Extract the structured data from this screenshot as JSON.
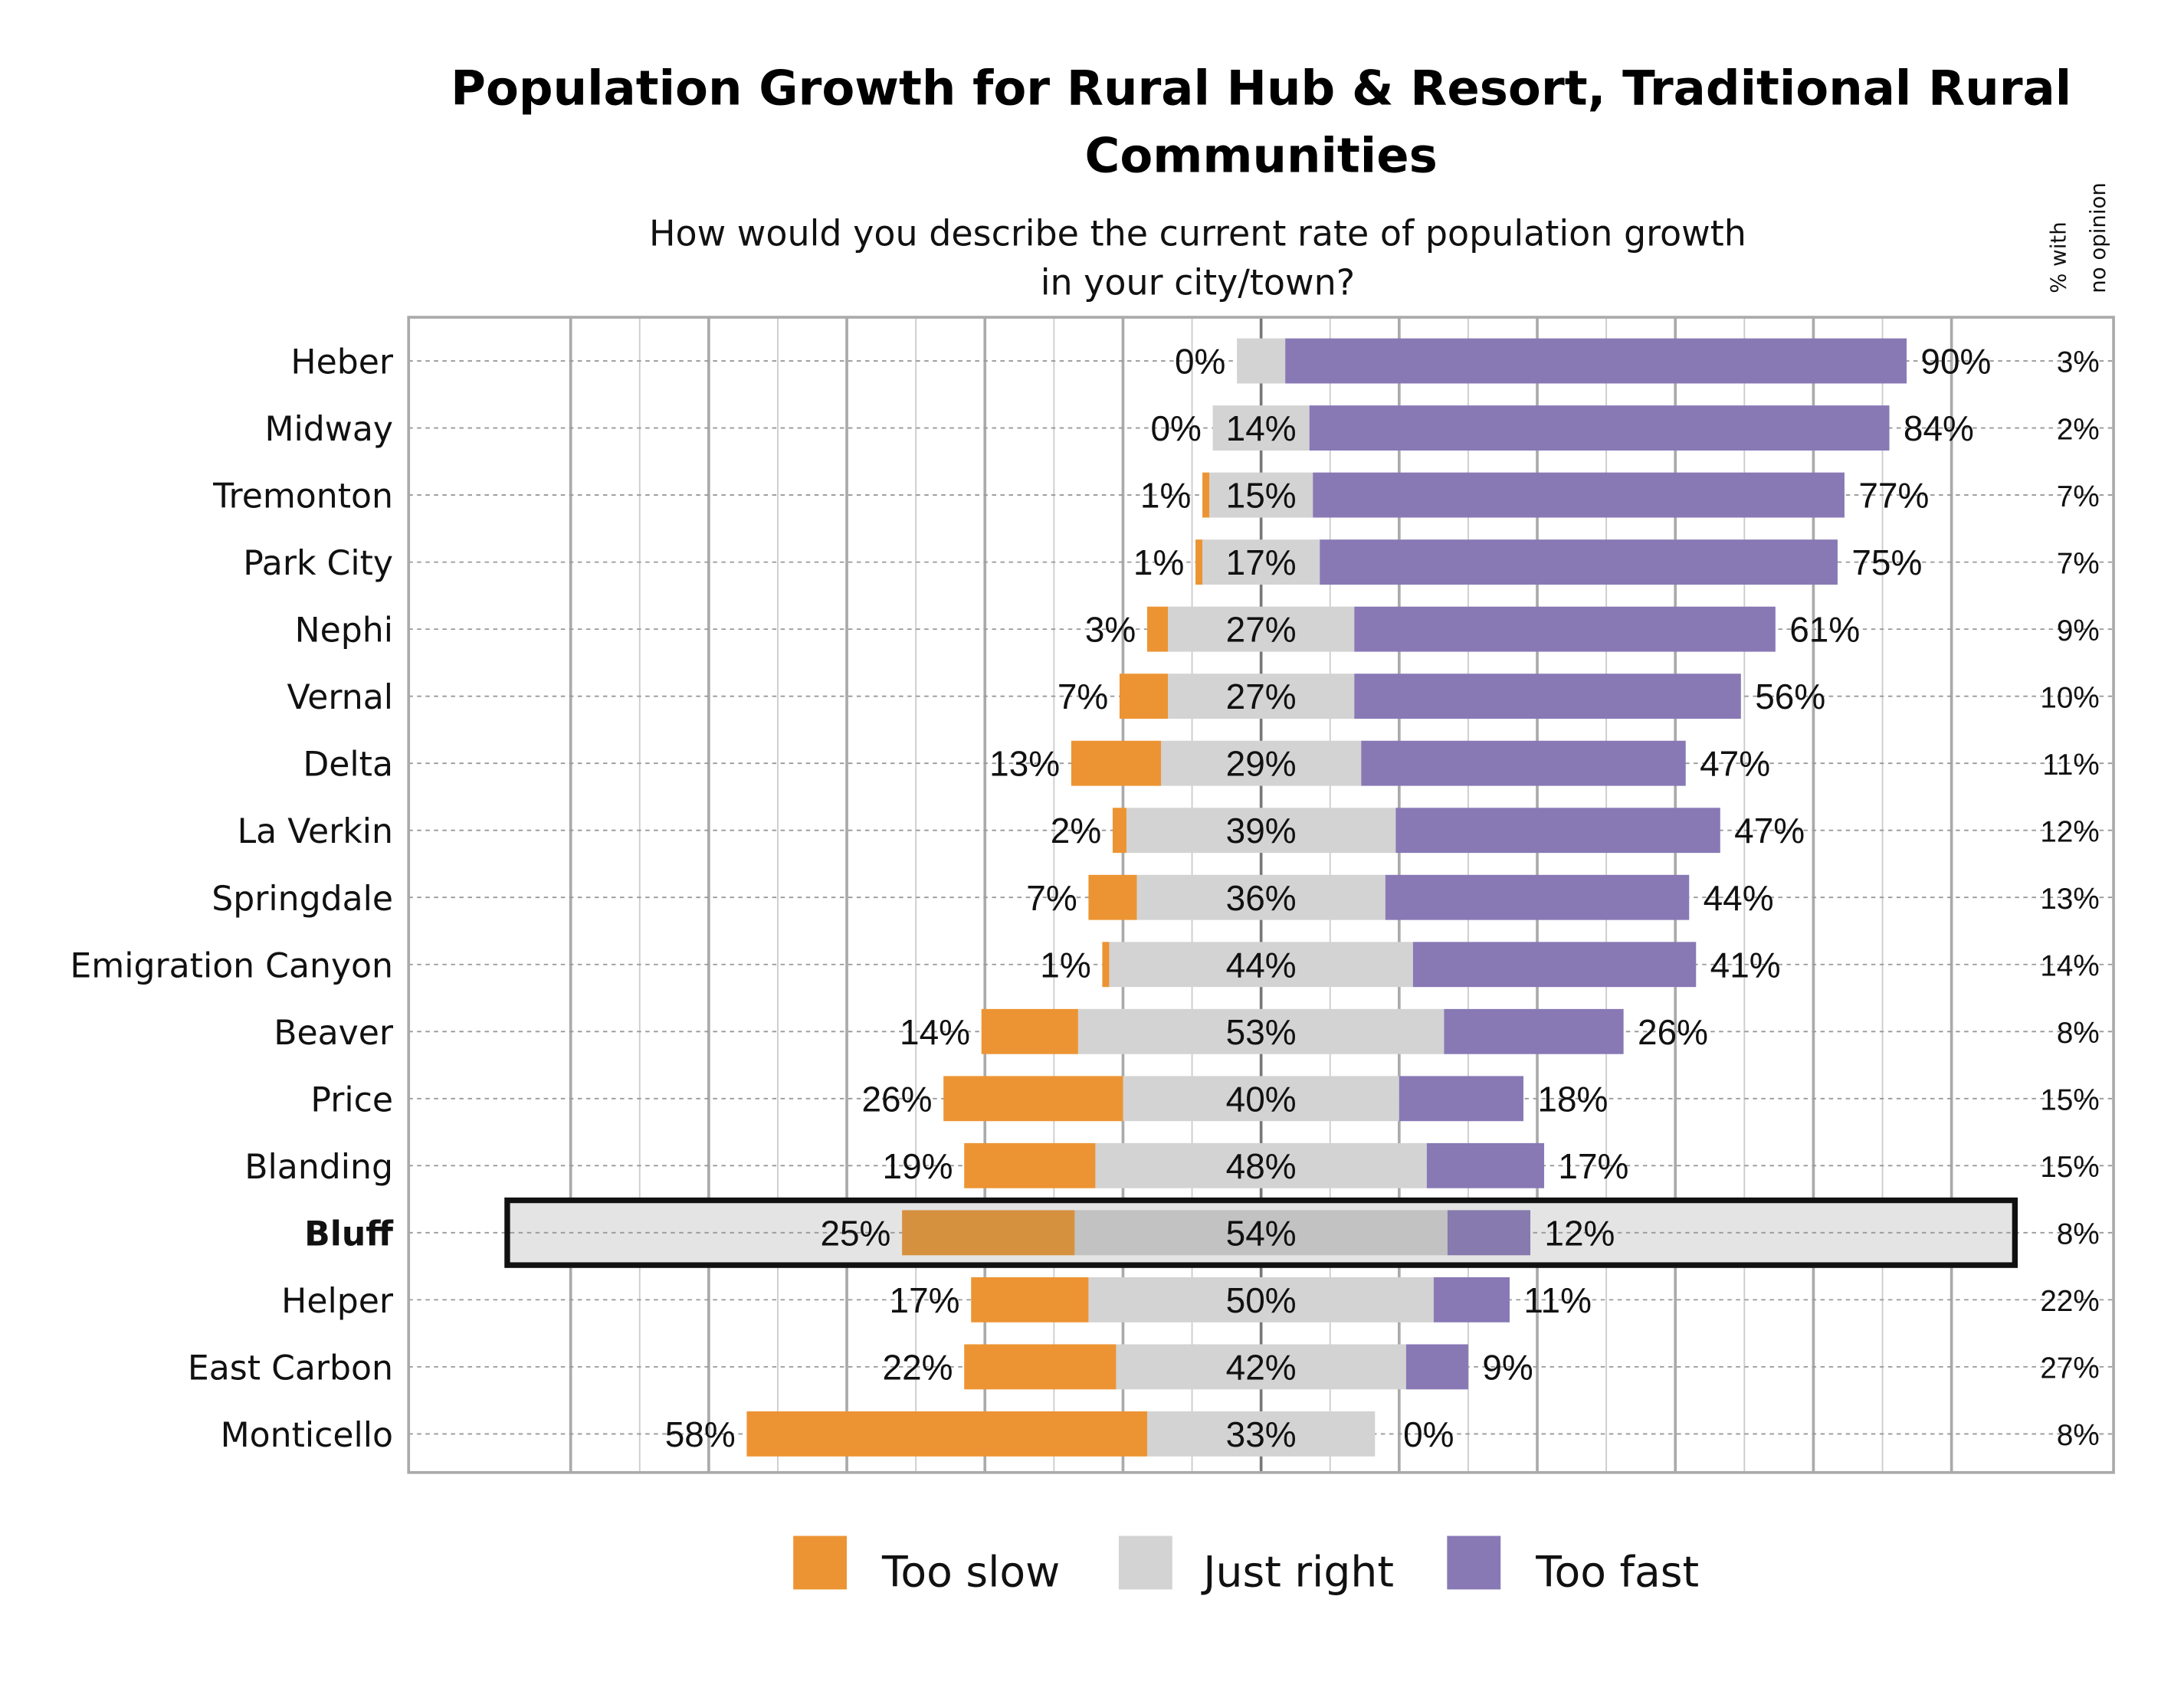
{
  "chart_data": {
    "type": "bar",
    "orientation": "horizontal",
    "stacking": "diverging",
    "title": "Population Growth for Rural Hub & Resort, Traditional Rural Communities",
    "title_lines": [
      "Population Growth for Rural Hub & Resort, Traditional Rural",
      "Communities"
    ],
    "subtitle_lines": [
      "How would you describe the current rate of population growth",
      "in your city/town?"
    ],
    "no_opinion_header_lines": [
      "% with",
      "no opinion"
    ],
    "grid": true,
    "legend_position": "bottom",
    "highlighted_category": "Bluff",
    "colors": {
      "Too slow": "#ec9433",
      "Just right": "#d3d3d3",
      "Too fast": "#8879b5",
      "highlight_bg": "#e4e4e4",
      "highlight_border": "#111111"
    },
    "highlight_colors": {
      "Too slow": "#d6913f",
      "Just right": "#c2c2c2",
      "Too fast": "#877aae"
    },
    "categories": [
      "Heber",
      "Midway",
      "Tremonton",
      "Park City",
      "Nephi",
      "Vernal",
      "Delta",
      "La Verkin",
      "Springdale",
      "Emigration Canyon",
      "Beaver",
      "Price",
      "Blanding",
      "Bluff",
      "Helper",
      "East Carbon",
      "Monticello"
    ],
    "series": [
      {
        "name": "Too slow",
        "values": [
          0,
          0,
          1,
          1,
          3,
          7,
          13,
          2,
          7,
          1,
          14,
          26,
          19,
          25,
          17,
          22,
          58
        ]
      },
      {
        "name": "Just right",
        "values": [
          7,
          14,
          15,
          17,
          27,
          27,
          29,
          39,
          36,
          44,
          53,
          40,
          48,
          54,
          50,
          42,
          33
        ]
      },
      {
        "name": "Too fast",
        "values": [
          90,
          84,
          77,
          75,
          61,
          56,
          47,
          47,
          44,
          41,
          26,
          18,
          17,
          12,
          11,
          9,
          0
        ]
      }
    ],
    "just_right_label_shown": [
      false,
      true,
      true,
      true,
      true,
      true,
      true,
      true,
      true,
      true,
      true,
      true,
      true,
      true,
      true,
      true,
      true
    ],
    "no_opinion": [
      3,
      2,
      7,
      7,
      9,
      10,
      11,
      12,
      13,
      14,
      8,
      15,
      15,
      8,
      22,
      27,
      8
    ],
    "value_suffix": "%"
  }
}
